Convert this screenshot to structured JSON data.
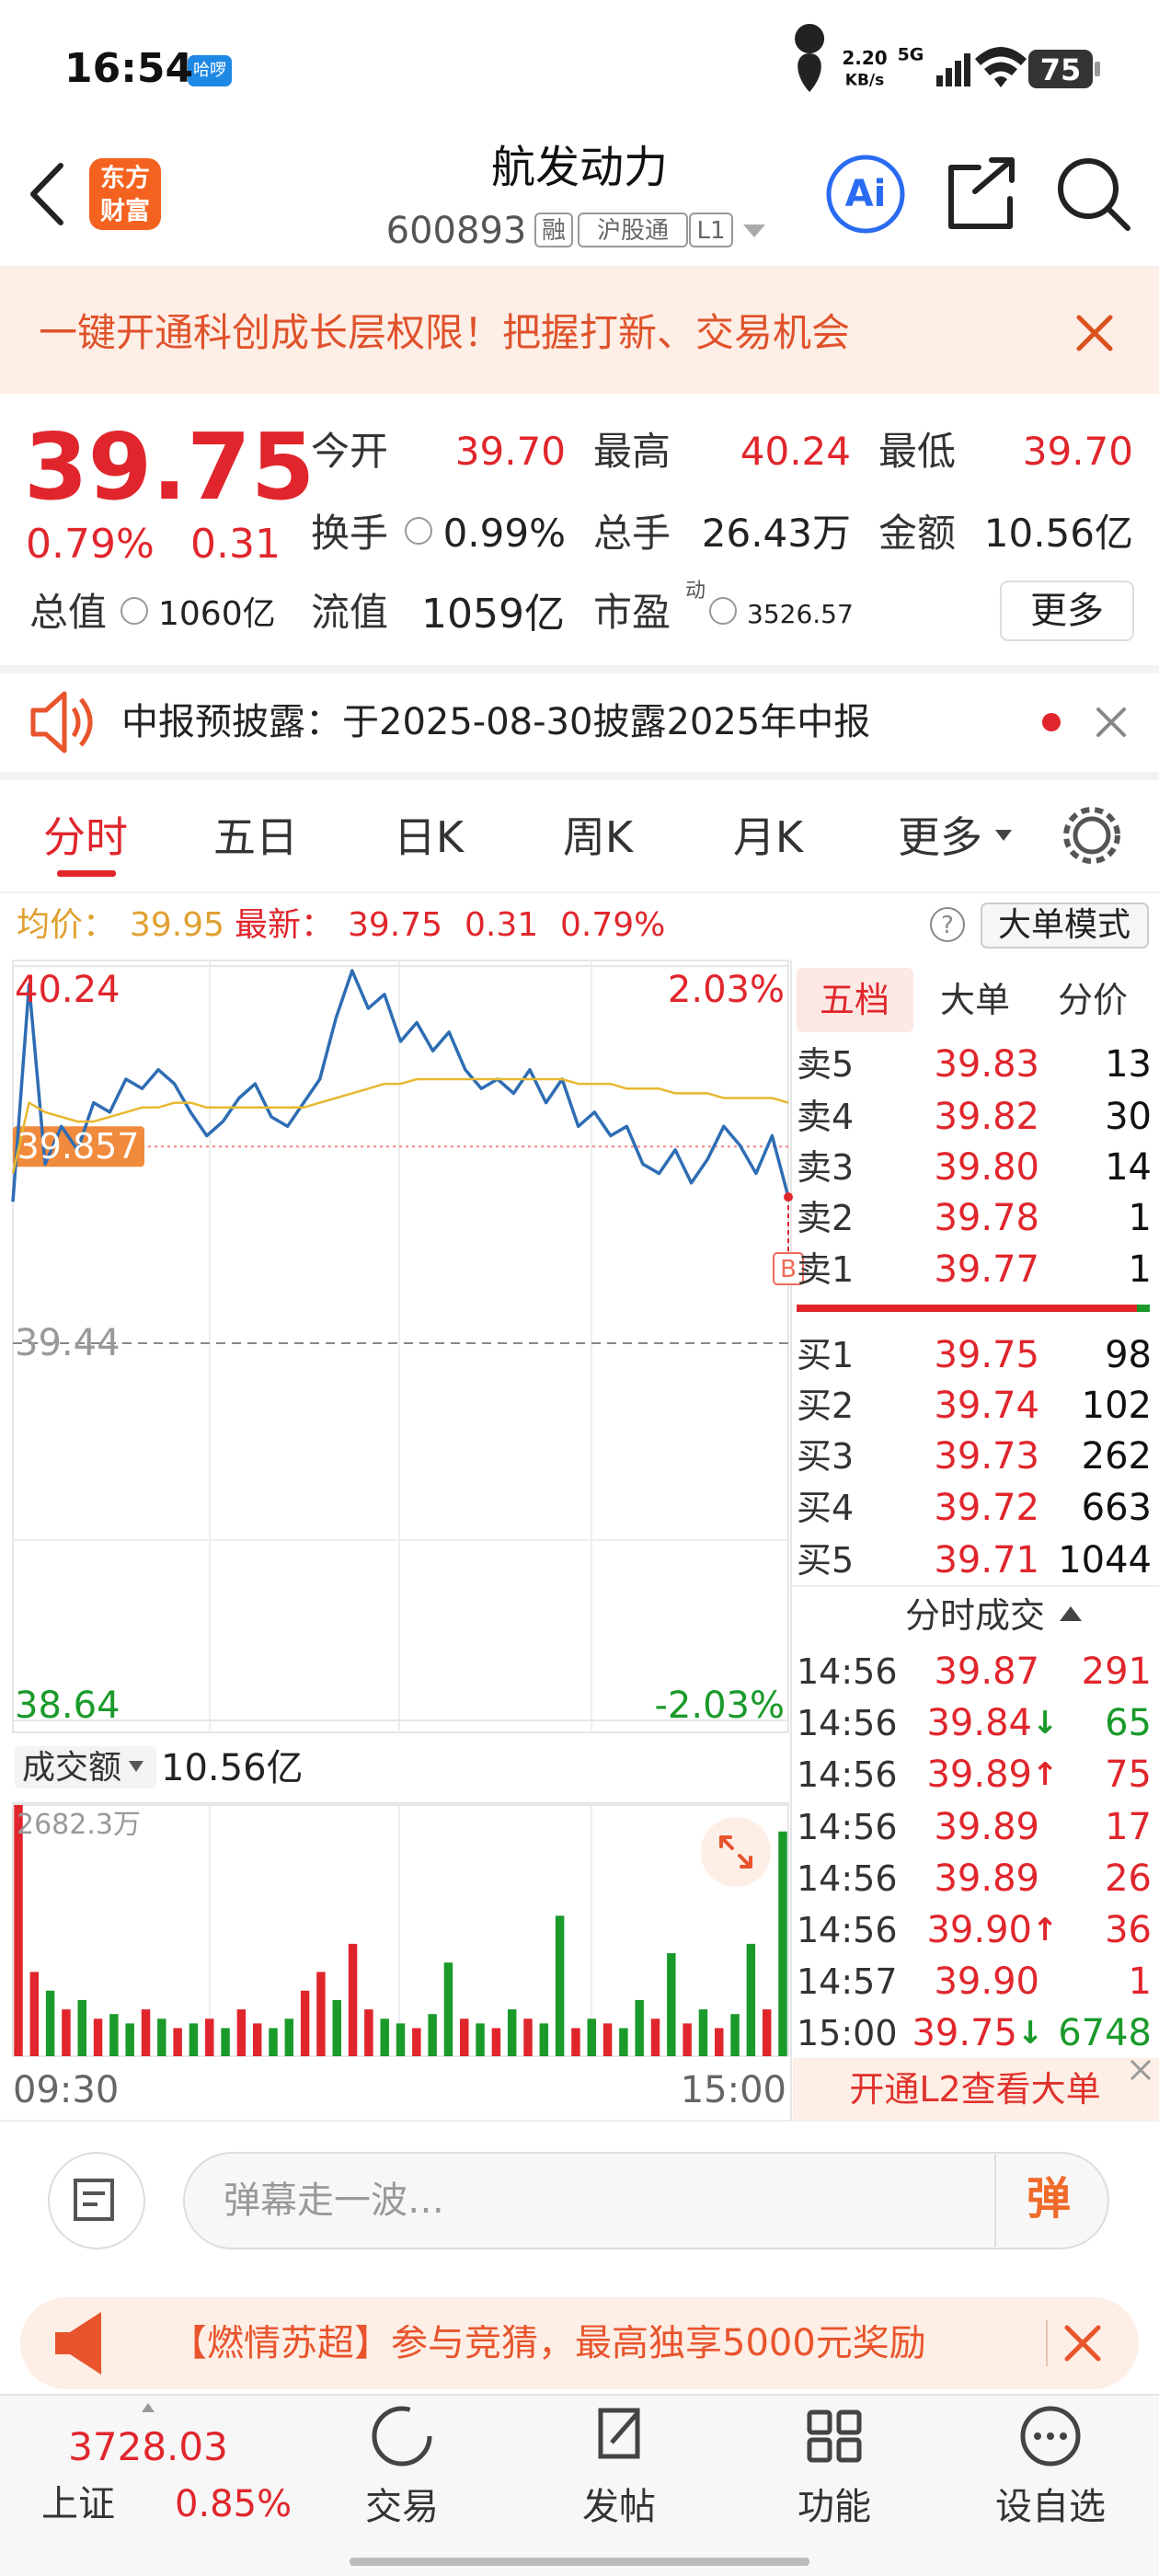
{
  "status_bar": {
    "time": "16:54",
    "app_badge": "哈啰",
    "speed": "2.20",
    "speed_unit": "KB/s",
    "network": "5G",
    "battery": "75"
  },
  "header": {
    "logo": [
      "东方",
      "财富"
    ],
    "title": "航发动力",
    "code": "600893",
    "tags": [
      "融",
      "沪股通",
      "L1"
    ],
    "ai": "Ai"
  },
  "banner": {
    "text": "一键开通科创成长层权限！把握打新、交易机会"
  },
  "quote": {
    "price": "39.75",
    "change_pct": "0.79%",
    "change": "0.31",
    "rows": [
      {
        "color": "#e0262c",
        "items": [
          {
            "label": "今开",
            "value": "39.70"
          },
          {
            "label": "最高",
            "value": "40.24"
          },
          {
            "label": "最低",
            "value": "39.70"
          }
        ]
      },
      {
        "color": "#222222",
        "items": [
          {
            "label": "换手",
            "value": "0.99%"
          },
          {
            "label": "总手",
            "value": "26.43万"
          },
          {
            "label": "金额",
            "value": "10.56亿"
          }
        ]
      },
      {
        "color": "#222222",
        "items": [
          {
            "label": "总值",
            "value": "1060亿"
          },
          {
            "label": "流值",
            "value": "1059亿"
          },
          {
            "label": "市盈",
            "superscript": "动",
            "value": "3526.57"
          }
        ]
      }
    ],
    "more": "更多"
  },
  "notice": {
    "text": "中报预披露：于2025-08-30披露2025年中报"
  },
  "tabs": [
    "分时",
    "五日",
    "日K",
    "周K",
    "月K",
    "更多"
  ],
  "info_bar": {
    "avg_label": "均价：",
    "avg": "39.95",
    "latest_label": "最新：",
    "latest": "39.75",
    "change": "0.31",
    "change_pct": "0.79%",
    "help": "?",
    "mode": "大单模式"
  },
  "chart_data": [
    {
      "type": "line",
      "categories": [
        "09:30",
        null,
        null,
        null,
        null,
        null,
        null,
        null,
        null,
        null,
        null,
        null,
        null,
        null,
        null,
        null,
        null,
        null,
        null,
        null,
        null,
        null,
        null,
        null,
        null,
        null,
        null,
        null,
        null,
        null,
        null,
        null,
        null,
        null,
        null,
        null,
        null,
        null,
        null,
        null,
        null,
        null,
        null,
        null,
        null,
        null,
        null,
        null,
        "15:00"
      ],
      "series": [
        {
          "color": "#2e6db4",
          "values": [
            39.74,
            40.2,
            39.82,
            39.9,
            39.85,
            39.95,
            39.93,
            40.0,
            39.98,
            40.02,
            39.99,
            39.93,
            39.88,
            39.91,
            39.96,
            39.99,
            39.92,
            39.9,
            39.95,
            40.0,
            40.13,
            40.23,
            40.15,
            40.18,
            40.08,
            40.12,
            40.06,
            40.1,
            40.02,
            39.98,
            40.0,
            39.97,
            40.02,
            39.95,
            40.0,
            39.9,
            39.93,
            39.88,
            39.9,
            39.82,
            39.8,
            39.85,
            39.78,
            39.83,
            39.9,
            39.86,
            39.8,
            39.88,
            39.75
          ]
        },
        {
          "color": "#e8b830",
          "values": [
            39.8,
            39.95,
            39.93,
            39.92,
            39.91,
            39.91,
            39.92,
            39.93,
            39.94,
            39.94,
            39.95,
            39.95,
            39.94,
            39.94,
            39.94,
            39.94,
            39.94,
            39.94,
            39.94,
            39.95,
            39.96,
            39.97,
            39.98,
            39.99,
            39.99,
            40.0,
            40.0,
            40.0,
            40.0,
            40.0,
            40.0,
            40.0,
            40.0,
            40.0,
            40.0,
            39.99,
            39.99,
            39.99,
            39.98,
            39.98,
            39.98,
            39.97,
            39.97,
            39.97,
            39.96,
            39.96,
            39.96,
            39.96,
            39.95
          ]
        }
      ],
      "ylim": [
        38.64,
        40.24
      ],
      "yticks": [
        {
          "value": 40.24,
          "label": "40.24"
        },
        {
          "value": 39.44,
          "label": "39.44"
        },
        {
          "value": 38.64,
          "label": "38.64"
        }
      ],
      "y2lim": [
        -2.03,
        2.03
      ],
      "y2ticks": [
        {
          "value": 2.03,
          "label": "2.03%"
        },
        {
          "value": -2.03,
          "label": "-2.03%"
        }
      ],
      "annotations": [
        {
          "value": 39.857,
          "label": "39.857"
        }
      ],
      "marker": "B"
    },
    {
      "type": "bar",
      "label": "成交额",
      "total": "10.56亿",
      "values": [
        2682.3,
        900,
        700,
        500,
        600,
        400,
        450,
        350,
        500,
        400,
        300,
        350,
        400,
        300,
        500,
        350,
        300,
        400,
        700,
        900,
        600,
        1200,
        500,
        400,
        350,
        300,
        450,
        1000,
        400,
        350,
        300,
        500,
        400,
        350,
        1500,
        300,
        400,
        350,
        300,
        600,
        400,
        1100,
        350,
        500,
        300,
        450,
        1200,
        500,
        2400
      ],
      "colors": [
        "#e0262c",
        "#e0262c",
        "#1a9a2a",
        "#e0262c",
        "#1a9a2a",
        "#e0262c",
        "#1a9a2a",
        "#1a9a2a",
        "#e0262c",
        "#1a9a2a",
        "#e0262c",
        "#1a9a2a",
        "#e0262c",
        "#1a9a2a",
        "#e0262c",
        "#e0262c",
        "#1a9a2a",
        "#1a9a2a",
        "#e0262c",
        "#e0262c",
        "#1a9a2a",
        "#e0262c",
        "#e0262c",
        "#1a9a2a",
        "#1a9a2a",
        "#e0262c",
        "#1a9a2a",
        "#1a9a2a",
        "#e0262c",
        "#1a9a2a",
        "#e0262c",
        "#1a9a2a",
        "#e0262c",
        "#1a9a2a",
        "#1a9a2a",
        "#e0262c",
        "#1a9a2a",
        "#e0262c",
        "#1a9a2a",
        "#1a9a2a",
        "#e0262c",
        "#1a9a2a",
        "#e0262c",
        "#1a9a2a",
        "#e0262c",
        "#1a9a2a",
        "#1a9a2a",
        "#e0262c",
        "#1a9a2a"
      ],
      "ylim": [
        0,
        2682.3
      ],
      "yticks": [
        {
          "value": 2682.3,
          "label": "2682.3万"
        }
      ]
    }
  ],
  "order_book": {
    "tabs": [
      "五档",
      "大单",
      "分价"
    ],
    "asks": [
      [
        "卖5",
        "39.83",
        "13"
      ],
      [
        "卖4",
        "39.82",
        "30"
      ],
      [
        "卖3",
        "39.80",
        "14"
      ],
      [
        "卖2",
        "39.78",
        "1"
      ],
      [
        "卖1",
        "39.77",
        "1"
      ]
    ],
    "bids": [
      [
        "买1",
        "39.75",
        "98"
      ],
      [
        "买2",
        "39.74",
        "102"
      ],
      [
        "买3",
        "39.73",
        "262"
      ],
      [
        "买4",
        "39.72",
        "663"
      ],
      [
        "买5",
        "39.71",
        "1044"
      ]
    ]
  },
  "trades": {
    "title": "分时成交",
    "rows": [
      {
        "time": "14:56",
        "price": "39.87",
        "volume": "291",
        "side": "buy"
      },
      {
        "time": "14:56",
        "price": "39.84",
        "arrow": "↓",
        "volume": "65",
        "side": "sell"
      },
      {
        "time": "14:56",
        "price": "39.89",
        "arrow": "↑",
        "volume": "75",
        "side": "buy"
      },
      {
        "time": "14:56",
        "price": "39.89",
        "volume": "17",
        "side": "buy"
      },
      {
        "time": "14:56",
        "price": "39.89",
        "volume": "26",
        "side": "buy"
      },
      {
        "time": "14:56",
        "price": "39.90",
        "arrow": "↑",
        "volume": "36",
        "side": "buy"
      },
      {
        "time": "14:57",
        "price": "39.90",
        "volume": "1",
        "side": "buy"
      },
      {
        "time": "15:00",
        "price": "39.75",
        "arrow": "↓",
        "volume": "6748",
        "side": "sell"
      }
    ]
  },
  "l2_button": "开通L2查看大单",
  "comment": {
    "placeholder": "弹幕走一波…",
    "button": "弹"
  },
  "promo": "【燃情苏超】参与竞猜，最高独享5000元奖励",
  "bottom_nav": {
    "index_value": "3728.03",
    "index_name": "上证",
    "index_pct": "0.85%",
    "items": [
      "交易",
      "发帖",
      "功能",
      "设自选"
    ]
  }
}
